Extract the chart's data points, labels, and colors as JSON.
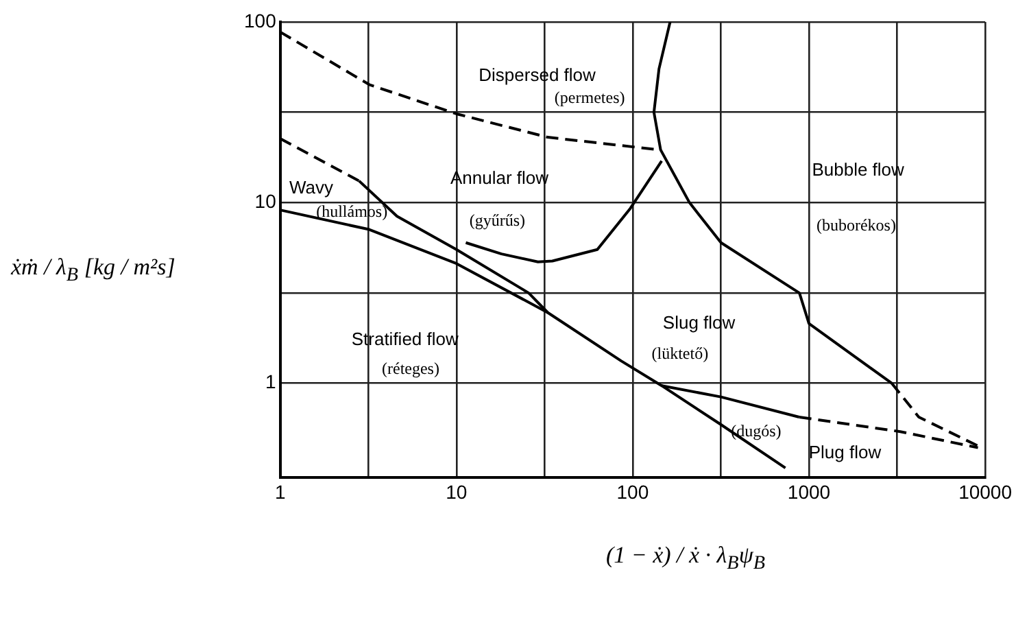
{
  "chart_data": {
    "type": "line",
    "log": "xy",
    "grid": true,
    "marker": "none",
    "xlabel": "(1 − ẋ) / ẋ · λ$_{B}$ψ$_{B}$",
    "ylabel": "ẋṁ / λ$_{B}$ [kg / m²s]",
    "xlim": [
      1,
      10000
    ],
    "ylim": [
      0.3,
      100
    ],
    "xticks": [
      1,
      {
        "value": 3.16,
        "label": null
      },
      10,
      {
        "value": 31.6,
        "label": null
      },
      100,
      {
        "value": 316,
        "label": null
      },
      1000,
      {
        "value": 3160,
        "label": null
      },
      10000
    ],
    "yticks": [
      1,
      {
        "value": 3.16,
        "label": null
      },
      10,
      {
        "value": 31.6,
        "label": null
      },
      100
    ],
    "series": [
      {
        "color": "#000000",
        "line_style": "dashed",
        "x": [
          1,
          3.2,
          10,
          33,
          141
        ],
        "values": [
          88,
          45,
          31,
          23,
          19.6
        ]
      },
      {
        "color": "#000000",
        "line_style": "solid",
        "x": [
          163,
          141,
          132,
          144,
          210,
          317,
          883,
          1000,
          2950
        ],
        "values": [
          100,
          55,
          31.6,
          19.6,
          10,
          6,
          3.16,
          2.14,
          1
        ]
      },
      {
        "color": "#000000",
        "line_style": "dashed",
        "x": [
          2950,
          4200,
          9100
        ],
        "values": [
          1,
          0.65,
          0.45
        ]
      },
      {
        "color": "#000000",
        "line_style": "dashed",
        "x": [
          1,
          2.8
        ],
        "values": [
          22.6,
          13.2
        ]
      },
      {
        "color": "#000000",
        "line_style": "solid",
        "x": [
          2.8,
          4.6,
          10,
          25.7,
          33,
          86,
          146,
          317,
          735
        ],
        "values": [
          13.2,
          8.4,
          5.5,
          3.16,
          2.46,
          1.33,
          0.97,
          0.59,
          0.34
        ]
      },
      {
        "color": "#000000",
        "line_style": "solid",
        "x": [
          1,
          3.2,
          10,
          33
        ],
        "values": [
          9.1,
          7.1,
          4.6,
          2.46
        ]
      },
      {
        "color": "#000000",
        "line_style": "solid",
        "x": [
          11.3,
          18,
          29,
          35,
          63,
          97,
          146
        ],
        "values": [
          6,
          5.2,
          4.7,
          4.75,
          5.5,
          9.3,
          17
        ]
      },
      {
        "color": "#000000",
        "line_style": "solid",
        "x": [
          146,
          317,
          880
        ],
        "values": [
          0.97,
          0.84,
          0.65
        ]
      },
      {
        "color": "#000000",
        "line_style": "dashed",
        "x": [
          880,
          3300,
          9100
        ],
        "values": [
          0.65,
          0.54,
          0.44
        ]
      }
    ],
    "annotations": [
      "Dispersed flow",
      "(permetes)",
      "Annular flow",
      "(gyűrűs)",
      "Wavy",
      "(hullámos)",
      "Bubble flow",
      "(buborékos)",
      "Stratified flow",
      "(réteges)",
      "Slug flow",
      "(lüktető)",
      "(dugós)",
      "Plug flow"
    ]
  }
}
